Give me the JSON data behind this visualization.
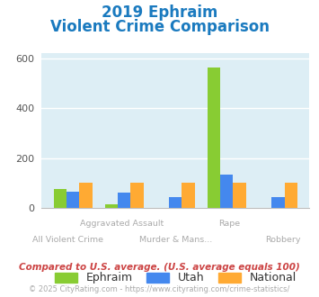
{
  "title_line1": "2019 Ephraim",
  "title_line2": "Violent Crime Comparison",
  "title_color": "#1a7abf",
  "categories": [
    "All Violent Crime",
    "Aggravated Assault",
    "Murder & Mans...",
    "Rape",
    "Robbery"
  ],
  "ephraim": [
    75,
    15,
    0,
    565,
    0
  ],
  "utah": [
    65,
    60,
    45,
    135,
    45
  ],
  "national": [
    100,
    100,
    100,
    100,
    100
  ],
  "ephraim_color": "#88cc33",
  "utah_color": "#4488ee",
  "national_color": "#ffaa33",
  "bg_color": "#ddeef5",
  "ylim": [
    0,
    620
  ],
  "yticks": [
    0,
    200,
    400,
    600
  ],
  "grid_color": "#ffffff",
  "footnote1": "Compared to U.S. average. (U.S. average equals 100)",
  "footnote2": "© 2025 CityRating.com - https://www.cityrating.com/crime-statistics/",
  "footnote1_color": "#cc4444",
  "footnote2_color": "#aaaaaa",
  "legend_labels": [
    "Ephraim",
    "Utah",
    "National"
  ]
}
